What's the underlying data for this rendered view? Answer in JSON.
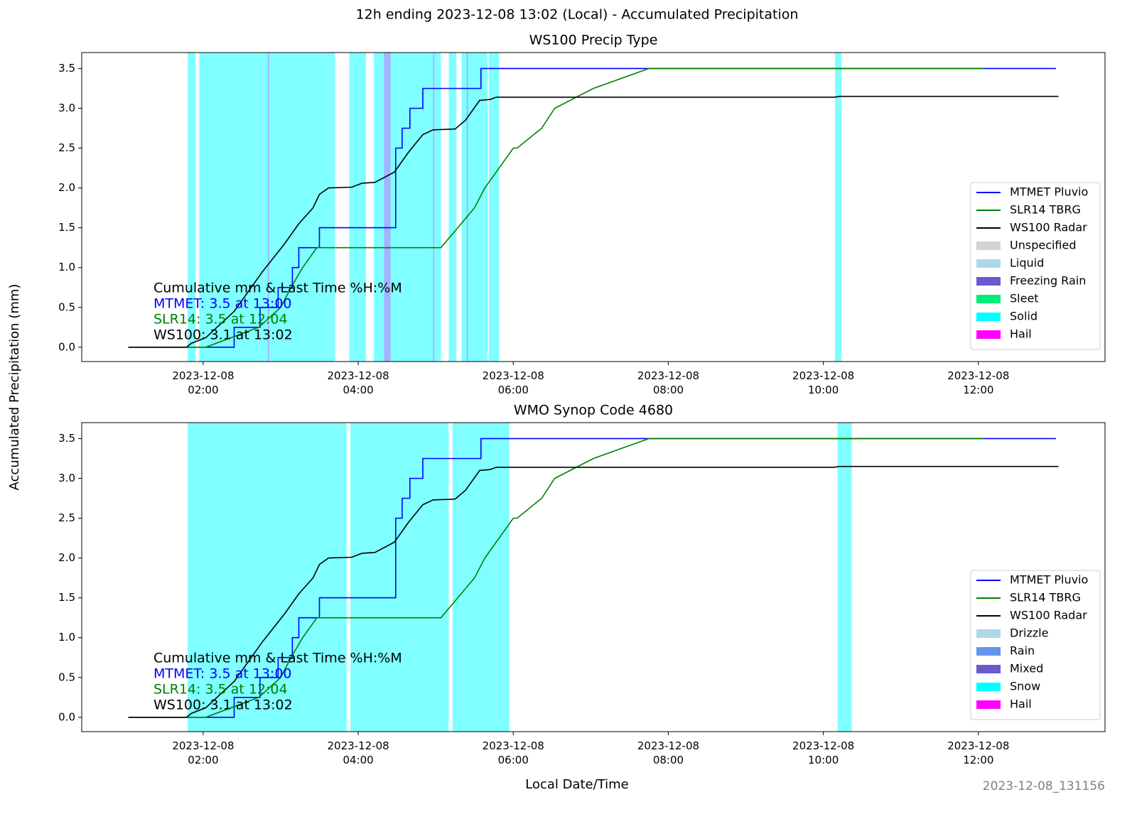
{
  "suptitle": "12h ending 2023-12-08 13:02 (Local) - Accumulated Precipitation",
  "ylabel": "Accumulated Precipitation (mm)",
  "xlabel": "Local Date/Time",
  "footer": "2023-12-08_131156",
  "chart_data": [
    {
      "type": "line",
      "title": "WS100 Precip Type",
      "xlim": [
        "2023-12-08 00:26",
        "2023-12-08 13:38"
      ],
      "xticks": [
        {
          "value": "2023-12-08 02:00",
          "label": "2023-12-08 02:00"
        },
        {
          "value": "2023-12-08 04:00",
          "label": "2023-12-08 04:00"
        },
        {
          "value": "2023-12-08 06:00",
          "label": "2023-12-08 06:00"
        },
        {
          "value": "2023-12-08 08:00",
          "label": "2023-12-08 08:00"
        },
        {
          "value": "2023-12-08 10:00",
          "label": "2023-12-08 10:00"
        },
        {
          "value": "2023-12-08 12:00",
          "label": "2023-12-08 12:00"
        }
      ],
      "ylim": [
        -0.18,
        3.7
      ],
      "yticks": [
        {
          "value": 0,
          "label": "0.0"
        },
        0.5,
        {
          "value": 1,
          "label": "1.0"
        },
        1.5,
        {
          "value": 2,
          "label": "2.0"
        },
        2.5,
        {
          "value": 3,
          "label": "3.0"
        },
        3.5
      ],
      "legend": "lower right",
      "series": [
        {
          "name": "MTMET Pluvio",
          "color": "#0000ff",
          "x": [
            "2023-12-08 01:02",
            "2023-12-08 02:24",
            "2023-12-08 02:24",
            "2023-12-08 02:44",
            "2023-12-08 02:44",
            "2023-12-08 02:58",
            "2023-12-08 02:58",
            "2023-12-08 03:09",
            "2023-12-08 03:09",
            "2023-12-08 03:14",
            "2023-12-08 03:14",
            "2023-12-08 03:30",
            "2023-12-08 03:30",
            "2023-12-08 04:29",
            "2023-12-08 04:29",
            "2023-12-08 04:34",
            "2023-12-08 04:34",
            "2023-12-08 04:40",
            "2023-12-08 04:40",
            "2023-12-08 04:50",
            "2023-12-08 04:50",
            "2023-12-08 05:35",
            "2023-12-08 05:35",
            "2023-12-08 13:00"
          ],
          "values": [
            0,
            0,
            0.25,
            0.25,
            0.5,
            0.5,
            0.75,
            0.75,
            1.0,
            1.0,
            1.25,
            1.25,
            1.5,
            1.5,
            2.5,
            2.5,
            2.75,
            2.75,
            3.0,
            3.0,
            3.25,
            3.25,
            3.5,
            3.5
          ]
        },
        {
          "name": "SLR14 TBRG",
          "color": "#008000",
          "x": [
            "2023-12-08 01:02",
            "2023-12-08 02:02",
            "2023-12-08 02:43",
            "2023-12-08 03:00",
            "2023-12-08 03:08",
            "2023-12-08 03:17",
            "2023-12-08 03:28",
            "2023-12-08 05:04",
            "2023-12-08 05:30",
            "2023-12-08 05:38",
            "2023-12-08 06:00",
            "2023-12-08 06:03",
            "2023-12-08 06:22",
            "2023-12-08 06:32",
            "2023-12-08 07:02",
            "2023-12-08 07:45",
            "2023-12-08 12:04"
          ],
          "values": [
            0,
            0,
            0.25,
            0.5,
            0.75,
            1.0,
            1.25,
            1.25,
            1.75,
            2.0,
            2.5,
            2.5,
            2.75,
            3.0,
            3.25,
            3.5,
            3.5
          ]
        },
        {
          "name": "WS100 Radar",
          "color": "#000000",
          "x": [
            "2023-12-08 01:02",
            "2023-12-08 01:47",
            "2023-12-08 01:51",
            "2023-12-08 02:02",
            "2023-12-08 02:24",
            "2023-12-08 02:46",
            "2023-12-08 03:03",
            "2023-12-08 03:14",
            "2023-12-08 03:25",
            "2023-12-08 03:30",
            "2023-12-08 03:37",
            "2023-12-08 03:55",
            "2023-12-08 04:03",
            "2023-12-08 04:13",
            "2023-12-08 04:28",
            "2023-12-08 04:39",
            "2023-12-08 04:50",
            "2023-12-08 04:58",
            "2023-12-08 05:15",
            "2023-12-08 05:23",
            "2023-12-08 05:34",
            "2023-12-08 05:42",
            "2023-12-08 05:47",
            "2023-12-08 10:09",
            "2023-12-08 10:12",
            "2023-12-08 13:02"
          ],
          "values": [
            0,
            0,
            0.05,
            0.12,
            0.45,
            0.95,
            1.3,
            1.55,
            1.75,
            1.92,
            2.0,
            2.01,
            2.06,
            2.07,
            2.2,
            2.45,
            2.67,
            2.73,
            2.74,
            2.85,
            3.1,
            3.11,
            3.14,
            3.14,
            3.15,
            3.15
          ]
        }
      ],
      "legend_items": [
        {
          "name": "Unspecified",
          "color": "#d3d3d3"
        },
        {
          "name": "Liquid",
          "color": "#add8e6"
        },
        {
          "name": "Freezing Rain",
          "color": "#6a5acd"
        },
        {
          "name": "Sleet",
          "color": "#00ee76"
        },
        {
          "name": "Solid",
          "color": "#00ffff"
        },
        {
          "name": "Hail",
          "color": "#ff00ff"
        }
      ],
      "spans": [
        {
          "kind": "Solid",
          "start": "2023-12-08 01:48",
          "end": "2023-12-08 01:54"
        },
        {
          "kind": "Solid",
          "start": "2023-12-08 01:57",
          "end": "2023-12-08 03:42"
        },
        {
          "kind": "Solid",
          "start": "2023-12-08 03:53",
          "end": "2023-12-08 04:06"
        },
        {
          "kind": "Solid",
          "start": "2023-12-08 04:12",
          "end": "2023-12-08 05:04"
        },
        {
          "kind": "Solid",
          "start": "2023-12-08 05:10",
          "end": "2023-12-08 05:16"
        },
        {
          "kind": "Solid",
          "start": "2023-12-08 05:20",
          "end": "2023-12-08 05:40"
        },
        {
          "kind": "Solid",
          "start": "2023-12-08 05:41",
          "end": "2023-12-08 05:49"
        },
        {
          "kind": "Solid",
          "start": "2023-12-08 10:09",
          "end": "2023-12-08 10:14"
        },
        {
          "kind": "Hail",
          "start": "2023-12-08 02:50",
          "end": "2023-12-08 02:51"
        },
        {
          "kind": "Hail",
          "start": "2023-12-08 04:20",
          "end": "2023-12-08 04:25"
        },
        {
          "kind": "Hail",
          "start": "2023-12-08 04:58",
          "end": "2023-12-08 04:59"
        },
        {
          "kind": "Hail",
          "start": "2023-12-08 05:24",
          "end": "2023-12-08 05:25"
        }
      ],
      "annotations": [
        {
          "text": "Cumulative mm & Last Time %H:%M",
          "color": "#000000"
        },
        {
          "text": "MTMET: 3.5 at 13:00",
          "color": "#0000ff"
        },
        {
          "text": "SLR14: 3.5 at 12:04",
          "color": "#008000"
        },
        {
          "text": "WS100: 3.1 at 13:02",
          "color": "#000000"
        }
      ]
    },
    {
      "type": "line",
      "title": "WMO Synop Code 4680",
      "xlim": [
        "2023-12-08 00:26",
        "2023-12-08 13:38"
      ],
      "xticks": [
        {
          "value": "2023-12-08 02:00",
          "label": "2023-12-08 02:00"
        },
        {
          "value": "2023-12-08 04:00",
          "label": "2023-12-08 04:00"
        },
        {
          "value": "2023-12-08 06:00",
          "label": "2023-12-08 06:00"
        },
        {
          "value": "2023-12-08 08:00",
          "label": "2023-12-08 08:00"
        },
        {
          "value": "2023-12-08 10:00",
          "label": "2023-12-08 10:00"
        },
        {
          "value": "2023-12-08 12:00",
          "label": "2023-12-08 12:00"
        }
      ],
      "ylim": [
        -0.18,
        3.7
      ],
      "yticks": [
        {
          "value": 0,
          "label": "0.0"
        },
        0.5,
        {
          "value": 1,
          "label": "1.0"
        },
        1.5,
        {
          "value": 2,
          "label": "2.0"
        },
        2.5,
        {
          "value": 3,
          "label": "3.0"
        },
        3.5
      ],
      "legend": "lower right",
      "series": [
        {
          "name": "MTMET Pluvio",
          "color": "#0000ff",
          "x": [
            "2023-12-08 01:02",
            "2023-12-08 02:24",
            "2023-12-08 02:24",
            "2023-12-08 02:44",
            "2023-12-08 02:44",
            "2023-12-08 02:58",
            "2023-12-08 02:58",
            "2023-12-08 03:09",
            "2023-12-08 03:09",
            "2023-12-08 03:14",
            "2023-12-08 03:14",
            "2023-12-08 03:30",
            "2023-12-08 03:30",
            "2023-12-08 04:29",
            "2023-12-08 04:29",
            "2023-12-08 04:34",
            "2023-12-08 04:34",
            "2023-12-08 04:40",
            "2023-12-08 04:40",
            "2023-12-08 04:50",
            "2023-12-08 04:50",
            "2023-12-08 05:35",
            "2023-12-08 05:35",
            "2023-12-08 13:00"
          ],
          "values": [
            0,
            0,
            0.25,
            0.25,
            0.5,
            0.5,
            0.75,
            0.75,
            1.0,
            1.0,
            1.25,
            1.25,
            1.5,
            1.5,
            2.5,
            2.5,
            2.75,
            2.75,
            3.0,
            3.0,
            3.25,
            3.25,
            3.5,
            3.5
          ]
        },
        {
          "name": "SLR14 TBRG",
          "color": "#008000",
          "x": [
            "2023-12-08 01:02",
            "2023-12-08 02:02",
            "2023-12-08 02:43",
            "2023-12-08 03:00",
            "2023-12-08 03:08",
            "2023-12-08 03:17",
            "2023-12-08 03:28",
            "2023-12-08 05:04",
            "2023-12-08 05:30",
            "2023-12-08 05:38",
            "2023-12-08 06:00",
            "2023-12-08 06:03",
            "2023-12-08 06:22",
            "2023-12-08 06:32",
            "2023-12-08 07:02",
            "2023-12-08 07:45",
            "2023-12-08 12:04"
          ],
          "values": [
            0,
            0,
            0.25,
            0.5,
            0.75,
            1.0,
            1.25,
            1.25,
            1.75,
            2.0,
            2.5,
            2.5,
            2.75,
            3.0,
            3.25,
            3.5,
            3.5
          ]
        },
        {
          "name": "WS100 Radar",
          "color": "#000000",
          "x": [
            "2023-12-08 01:02",
            "2023-12-08 01:47",
            "2023-12-08 01:51",
            "2023-12-08 02:02",
            "2023-12-08 02:24",
            "2023-12-08 02:46",
            "2023-12-08 03:03",
            "2023-12-08 03:14",
            "2023-12-08 03:25",
            "2023-12-08 03:30",
            "2023-12-08 03:37",
            "2023-12-08 03:55",
            "2023-12-08 04:03",
            "2023-12-08 04:13",
            "2023-12-08 04:28",
            "2023-12-08 04:39",
            "2023-12-08 04:50",
            "2023-12-08 04:58",
            "2023-12-08 05:15",
            "2023-12-08 05:23",
            "2023-12-08 05:34",
            "2023-12-08 05:42",
            "2023-12-08 05:47",
            "2023-12-08 10:09",
            "2023-12-08 10:12",
            "2023-12-08 13:02"
          ],
          "values": [
            0,
            0,
            0.05,
            0.12,
            0.45,
            0.95,
            1.3,
            1.55,
            1.75,
            1.92,
            2.0,
            2.01,
            2.06,
            2.07,
            2.2,
            2.45,
            2.67,
            2.73,
            2.74,
            2.85,
            3.1,
            3.11,
            3.14,
            3.14,
            3.15,
            3.15
          ]
        }
      ],
      "legend_items": [
        {
          "name": "Drizzle",
          "color": "#add8e6"
        },
        {
          "name": "Rain",
          "color": "#6495ed"
        },
        {
          "name": "Mixed",
          "color": "#6a5acd"
        },
        {
          "name": "Snow",
          "color": "#00ffff"
        },
        {
          "name": "Hail",
          "color": "#ff00ff"
        }
      ],
      "spans": [
        {
          "kind": "Snow",
          "start": "2023-12-08 01:48",
          "end": "2023-12-08 03:51"
        },
        {
          "kind": "Snow",
          "start": "2023-12-08 03:54",
          "end": "2023-12-08 05:10"
        },
        {
          "kind": "Snow",
          "start": "2023-12-08 05:13",
          "end": "2023-12-08 05:57"
        },
        {
          "kind": "Snow",
          "start": "2023-12-08 10:11",
          "end": "2023-12-08 10:22"
        }
      ],
      "annotations": [
        {
          "text": "Cumulative mm & Last Time %H:%M",
          "color": "#000000"
        },
        {
          "text": "MTMET: 3.5 at 13:00",
          "color": "#0000ff"
        },
        {
          "text": "SLR14: 3.5 at 12:04",
          "color": "#008000"
        },
        {
          "text": "WS100: 3.1 at 13:02",
          "color": "#000000"
        }
      ]
    }
  ]
}
